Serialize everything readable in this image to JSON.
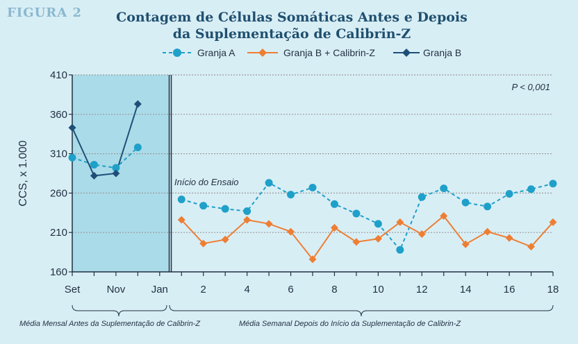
{
  "figure_label": "FIGURA 2",
  "chart_data": {
    "type": "line",
    "title_lines": [
      "Contagem de Células Somáticas Antes e Depois",
      "da Suplementação de Calibrin-Z"
    ],
    "ylabel": "CCS, x 1.000",
    "ylim": [
      160,
      410
    ],
    "yticks": [
      160,
      210,
      260,
      310,
      360,
      410
    ],
    "xticks": [
      {
        "x": 0,
        "label": "Set"
      },
      {
        "x": 2,
        "label": "Nov"
      },
      {
        "x": 4,
        "label": "Jan"
      },
      {
        "x": 6,
        "label": "2"
      },
      {
        "x": 8,
        "label": "4"
      },
      {
        "x": 10,
        "label": "6"
      },
      {
        "x": 12,
        "label": "8"
      },
      {
        "x": 14,
        "label": "10"
      },
      {
        "x": 16,
        "label": "12"
      },
      {
        "x": 18,
        "label": "14"
      },
      {
        "x": 20,
        "label": "16"
      },
      {
        "x": 22,
        "label": "18"
      }
    ],
    "period_split_x": 4.5,
    "annotation_pvalue": "P < 0,001",
    "annotation_start": "Início do Ensaio",
    "caption_before": "Média Mensal Antes da Suplementação de Calibrin-Z",
    "caption_after": "Média Semanal Depois do Início da Suplementação de Calibrin-Z",
    "colors": {
      "granja_a": "#1fa0c9",
      "granja_b_calibrin": "#ee7e33",
      "granja_b": "#1f4f78",
      "shade": "#aadbe8",
      "grid": "#9a9a9a"
    },
    "series": [
      {
        "name": "Granja A",
        "key": "granja_a",
        "style": "dashed",
        "marker": "circle",
        "segments": [
          {
            "x": [
              0,
              1,
              2,
              3
            ],
            "y": [
              305,
              296,
              292,
              318
            ]
          },
          {
            "x": [
              5,
              6,
              7,
              8,
              9,
              10,
              11,
              12,
              13,
              14,
              15,
              16,
              17,
              18,
              19,
              20,
              21,
              22
            ],
            "y": [
              252,
              244,
              240,
              237,
              273,
              258,
              267,
              246,
              234,
              221,
              188,
              255,
              266,
              248,
              243,
              259,
              265,
              272
            ]
          }
        ]
      },
      {
        "name": "Granja  B + Calibrin-Z",
        "key": "granja_b_calibrin",
        "style": "solid",
        "marker": "diamond",
        "segments": [
          {
            "x": [
              5,
              6,
              7,
              8,
              9,
              10,
              11,
              12,
              13,
              14,
              15,
              16,
              17,
              18,
              19,
              20,
              21,
              22
            ],
            "y": [
              226,
              196,
              201,
              226,
              221,
              211,
              176,
              216,
              198,
              202,
              223,
              208,
              231,
              195,
              211,
              203,
              192,
              223
            ]
          }
        ]
      },
      {
        "name": "Granja B",
        "key": "granja_b",
        "style": "solid",
        "marker": "diamond",
        "segments": [
          {
            "x": [
              0,
              1,
              2,
              3
            ],
            "y": [
              343,
              282,
              285,
              373
            ]
          }
        ]
      }
    ]
  }
}
